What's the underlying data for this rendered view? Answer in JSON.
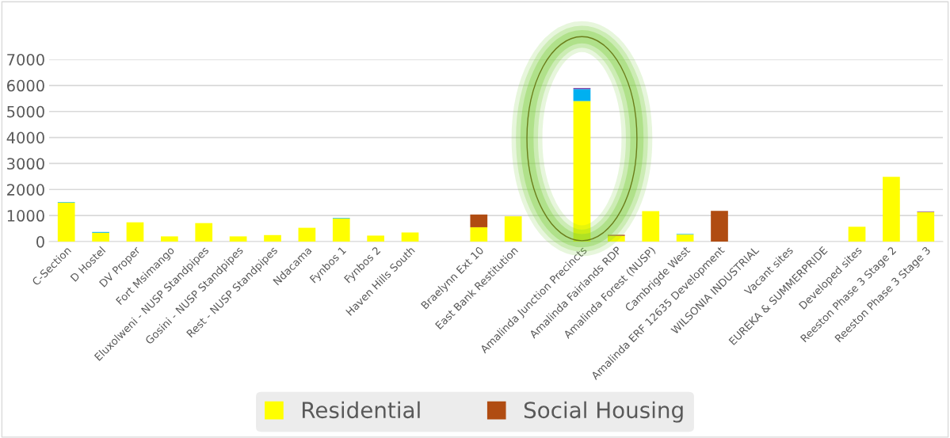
{
  "chart_data": {
    "type": "bar",
    "stacked": true,
    "categories": [
      "C-Section",
      "D Hostel",
      "DV Proper",
      "Fort Msimango",
      "Eluxolweni - NUSP Standpipes",
      "Gosini - NUSP Standpipes",
      "Rest - NUSP Standpipes",
      "Ndacama",
      "Fynbos 1",
      "Fynbos 2",
      "Haven Hills South",
      null,
      "Braelynn Ext 10",
      "East Bank Restitution",
      null,
      "Amalinda Junction Precincts",
      "Amalinda Fairlands RDP",
      "Amalinda Forest (NUSP)",
      "Cambrigde West",
      "Amalinda ERF 12635 Development",
      "WILSONIA INDUSTRIAL",
      "Vacant sites",
      "EUREKA & SUMMERPRIDE",
      "Developed sites",
      "Reeston Phase 3 Stage 2",
      "Reeston Phase 3 Stage 3"
    ],
    "series": [
      {
        "name": "Residential",
        "color": "#ffff00",
        "values": [
          1500,
          340,
          740,
          200,
          710,
          200,
          250,
          530,
          890,
          230,
          350,
          0,
          550,
          970,
          0,
          5400,
          220,
          1170,
          270,
          0,
          0,
          0,
          0,
          570,
          2490,
          1140
        ]
      },
      {
        "name": "Social Housing",
        "color": "#b04c12",
        "values": [
          0,
          0,
          0,
          0,
          0,
          0,
          0,
          0,
          0,
          0,
          0,
          0,
          490,
          0,
          0,
          0,
          40,
          0,
          0,
          1180,
          0,
          0,
          0,
          0,
          0,
          0
        ]
      },
      {
        "color": "#00b0f0",
        "values": [
          20,
          30,
          0,
          null,
          0,
          0,
          0,
          0,
          20,
          null,
          null,
          0,
          0,
          0,
          0,
          460,
          0,
          0,
          20,
          0,
          0,
          null,
          0,
          0,
          0,
          0
        ]
      },
      {
        "color": "#7030a0",
        "values": [
          0,
          0,
          0,
          0,
          0,
          0,
          0,
          0,
          0,
          0,
          0,
          0,
          0,
          0,
          0,
          40,
          0,
          0,
          0,
          0,
          0,
          0,
          0,
          0,
          null,
          20
        ]
      }
    ],
    "ylim": [
      0,
      7000
    ],
    "yticks": [
      0,
      1000,
      2000,
      3000,
      4000,
      5000,
      6000,
      7000
    ],
    "grid": "y",
    "legend": "bottom"
  }
}
